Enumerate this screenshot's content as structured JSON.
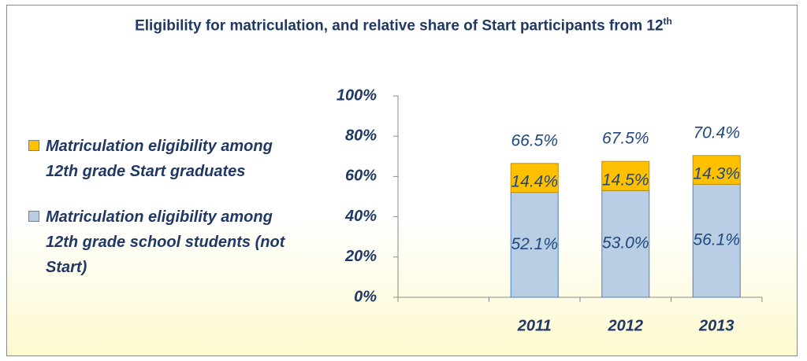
{
  "chart_data": {
    "type": "stacked_bar",
    "title": "Eligibility for matriculation, and relative share of Start participants from 12",
    "title_superscript": "th",
    "categories": [
      null,
      "2011",
      "2012",
      "2013"
    ],
    "series": [
      {
        "name": "Matriculation eligibility among 12th grade school students (not Start)",
        "color": "#b9cde5",
        "values": [
          null,
          52.1,
          53.0,
          56.1
        ],
        "value_labels": [
          null,
          "52.1%",
          "53.0%",
          "56.1%"
        ]
      },
      {
        "name": "Matriculation eligibility among 12th grade Start graduates",
        "color": "#ffc000",
        "values": [
          null,
          14.4,
          14.5,
          14.3
        ],
        "value_labels": [
          null,
          "14.4%",
          "14.5%",
          "14.3%"
        ]
      }
    ],
    "totals": {
      "values": [
        null,
        66.5,
        67.5,
        70.4
      ],
      "value_labels": [
        null,
        "66.5%",
        "67.5%",
        "70.4%"
      ]
    },
    "ylim": [
      0,
      100
    ],
    "yticks": [
      {
        "value": 0,
        "label": "0%"
      },
      {
        "value": 20,
        "label": "20%"
      },
      {
        "value": 40,
        "label": "40%"
      },
      {
        "value": 60,
        "label": "60%"
      },
      {
        "value": 80,
        "label": "80%"
      },
      {
        "value": 100,
        "label": "100%"
      }
    ],
    "grid": false,
    "legend": "left"
  }
}
